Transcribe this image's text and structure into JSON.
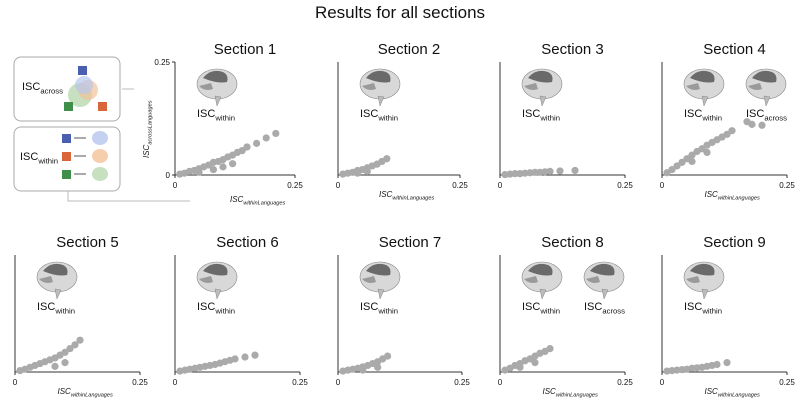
{
  "title": "Results for all sections",
  "legend_box": [
    {
      "main": "ISC",
      "sub": "across"
    },
    {
      "main": "ISC",
      "sub": "within"
    }
  ],
  "chart_data": [
    {
      "type": "scatter",
      "title": "Section 1",
      "color": "#aaaaaa",
      "x": [
        0.01,
        0.02,
        0.03,
        0.04,
        0.05,
        0.06,
        0.07,
        0.08,
        0.09,
        0.1,
        0.11,
        0.12,
        0.13,
        0.14,
        0.15,
        0.17,
        0.19,
        0.21,
        0.05,
        0.08,
        0.1,
        0.12
      ],
      "values": [
        0.002,
        0.004,
        0.008,
        0.01,
        0.014,
        0.018,
        0.022,
        0.028,
        0.03,
        0.034,
        0.04,
        0.044,
        0.05,
        0.054,
        0.062,
        0.07,
        0.082,
        0.092,
        0.006,
        0.012,
        0.018,
        0.025
      ],
      "xlim": [
        0,
        0.25
      ],
      "ylim": [
        0,
        0.25
      ],
      "xticks": [
        0,
        0.25
      ],
      "yticks": [
        0,
        0.25
      ],
      "xlabel": {
        "main": "ISC",
        "sub": "withinLanguages"
      },
      "ylabel": {
        "main": "ISC",
        "sub": "acrossLanguages"
      },
      "annotations": [
        {
          "main": "ISC",
          "sub": "within"
        }
      ]
    },
    {
      "type": "scatter",
      "title": "Section 2",
      "color": "#aaaaaa",
      "x": [
        0.01,
        0.02,
        0.03,
        0.04,
        0.05,
        0.06,
        0.07,
        0.08,
        0.09,
        0.1,
        0.04,
        0.06
      ],
      "values": [
        0.002,
        0.004,
        0.006,
        0.01,
        0.012,
        0.016,
        0.02,
        0.024,
        0.03,
        0.036,
        0.004,
        0.008
      ],
      "xlim": [
        0,
        0.25
      ],
      "ylim": [
        0,
        0.25
      ],
      "xticks": [
        0,
        0.25
      ],
      "xlabel": {
        "main": "ISC",
        "sub": "withinLanguages"
      },
      "annotations": [
        {
          "main": "ISC",
          "sub": "within"
        }
      ]
    },
    {
      "type": "scatter",
      "title": "Section 3",
      "color": "#aaaaaa",
      "x": [
        0.01,
        0.02,
        0.03,
        0.04,
        0.05,
        0.06,
        0.07,
        0.08,
        0.09,
        0.1,
        0.12,
        0.15
      ],
      "values": [
        0.001,
        0.002,
        0.003,
        0.003,
        0.004,
        0.005,
        0.006,
        0.006,
        0.007,
        0.008,
        0.009,
        0.01
      ],
      "xlim": [
        0,
        0.25
      ],
      "ylim": [
        0,
        0.25
      ],
      "xticks": [
        0,
        0.25
      ],
      "annotations": [
        {
          "main": "ISC",
          "sub": "within"
        }
      ]
    },
    {
      "type": "scatter",
      "title": "Section 4",
      "color": "#aaaaaa",
      "x": [
        0.01,
        0.02,
        0.03,
        0.04,
        0.05,
        0.06,
        0.07,
        0.08,
        0.09,
        0.1,
        0.11,
        0.12,
        0.13,
        0.14,
        0.17,
        0.18,
        0.2,
        0.06,
        0.09
      ],
      "values": [
        0.005,
        0.012,
        0.02,
        0.028,
        0.036,
        0.044,
        0.052,
        0.058,
        0.066,
        0.072,
        0.078,
        0.084,
        0.09,
        0.098,
        0.118,
        0.112,
        0.11,
        0.03,
        0.05
      ],
      "xlim": [
        0,
        0.25
      ],
      "ylim": [
        0,
        0.25
      ],
      "xticks": [
        0,
        0.25
      ],
      "xlabel": {
        "main": "ISC",
        "sub": "withinLanguages"
      },
      "annotations": [
        {
          "main": "ISC",
          "sub": "within"
        },
        {
          "main": "ISC",
          "sub": "across"
        }
      ]
    },
    {
      "type": "scatter",
      "title": "Section 5",
      "color": "#aaaaaa",
      "x": [
        0.01,
        0.02,
        0.03,
        0.04,
        0.05,
        0.06,
        0.07,
        0.08,
        0.09,
        0.1,
        0.11,
        0.12,
        0.13,
        0.08,
        0.1
      ],
      "values": [
        0.003,
        0.006,
        0.01,
        0.014,
        0.018,
        0.022,
        0.026,
        0.03,
        0.036,
        0.042,
        0.05,
        0.058,
        0.068,
        0.012,
        0.02
      ],
      "xlim": [
        0,
        0.25
      ],
      "ylim": [
        0,
        0.25
      ],
      "xticks": [
        0,
        0.25
      ],
      "xlabel": {
        "main": "ISC",
        "sub": "withinLanguages"
      },
      "annotations": [
        {
          "main": "ISC",
          "sub": "within"
        }
      ]
    },
    {
      "type": "scatter",
      "title": "Section 6",
      "color": "#aaaaaa",
      "x": [
        0.01,
        0.02,
        0.03,
        0.04,
        0.05,
        0.06,
        0.07,
        0.08,
        0.09,
        0.1,
        0.11,
        0.12,
        0.14,
        0.16
      ],
      "values": [
        0.002,
        0.004,
        0.006,
        0.008,
        0.01,
        0.012,
        0.014,
        0.016,
        0.019,
        0.022,
        0.025,
        0.028,
        0.032,
        0.036
      ],
      "xlim": [
        0,
        0.25
      ],
      "ylim": [
        0,
        0.25
      ],
      "xticks": [
        0,
        0.25
      ],
      "annotations": [
        {
          "main": "ISC",
          "sub": "within"
        }
      ]
    },
    {
      "type": "scatter",
      "title": "Section 7",
      "color": "#aaaaaa",
      "x": [
        0.01,
        0.02,
        0.03,
        0.04,
        0.05,
        0.06,
        0.07,
        0.08,
        0.09,
        0.1,
        0.05,
        0.08
      ],
      "values": [
        0.002,
        0.004,
        0.006,
        0.008,
        0.011,
        0.014,
        0.018,
        0.022,
        0.028,
        0.034,
        0.004,
        0.01
      ],
      "xlim": [
        0,
        0.25
      ],
      "ylim": [
        0,
        0.25
      ],
      "xticks": [
        0,
        0.25
      ],
      "annotations": [
        {
          "main": "ISC",
          "sub": "within"
        }
      ]
    },
    {
      "type": "scatter",
      "title": "Section 8",
      "color": "#aaaaaa",
      "x": [
        0.01,
        0.02,
        0.03,
        0.04,
        0.05,
        0.06,
        0.07,
        0.08,
        0.09,
        0.1,
        0.04,
        0.07
      ],
      "values": [
        0.004,
        0.008,
        0.014,
        0.018,
        0.024,
        0.028,
        0.034,
        0.04,
        0.044,
        0.05,
        0.01,
        0.02
      ],
      "xlim": [
        0,
        0.25
      ],
      "ylim": [
        0,
        0.25
      ],
      "xticks": [
        0,
        0.25
      ],
      "xlabel": {
        "main": "ISC",
        "sub": "withinLanguages"
      },
      "annotations": [
        {
          "main": "ISC",
          "sub": "within"
        },
        {
          "main": "ISC",
          "sub": "across"
        }
      ]
    },
    {
      "type": "scatter",
      "title": "Section 9",
      "color": "#aaaaaa",
      "x": [
        0.01,
        0.02,
        0.03,
        0.04,
        0.05,
        0.06,
        0.07,
        0.08,
        0.09,
        0.1,
        0.11,
        0.13
      ],
      "values": [
        0.002,
        0.003,
        0.004,
        0.005,
        0.006,
        0.008,
        0.009,
        0.01,
        0.012,
        0.014,
        0.016,
        0.02
      ],
      "xlim": [
        0,
        0.25
      ],
      "ylim": [
        0,
        0.25
      ],
      "xticks": [
        0,
        0.25
      ],
      "xlabel": {
        "main": "ISC",
        "sub": "withinLanguages"
      },
      "annotations": [
        {
          "main": "ISC",
          "sub": "within"
        }
      ]
    }
  ]
}
